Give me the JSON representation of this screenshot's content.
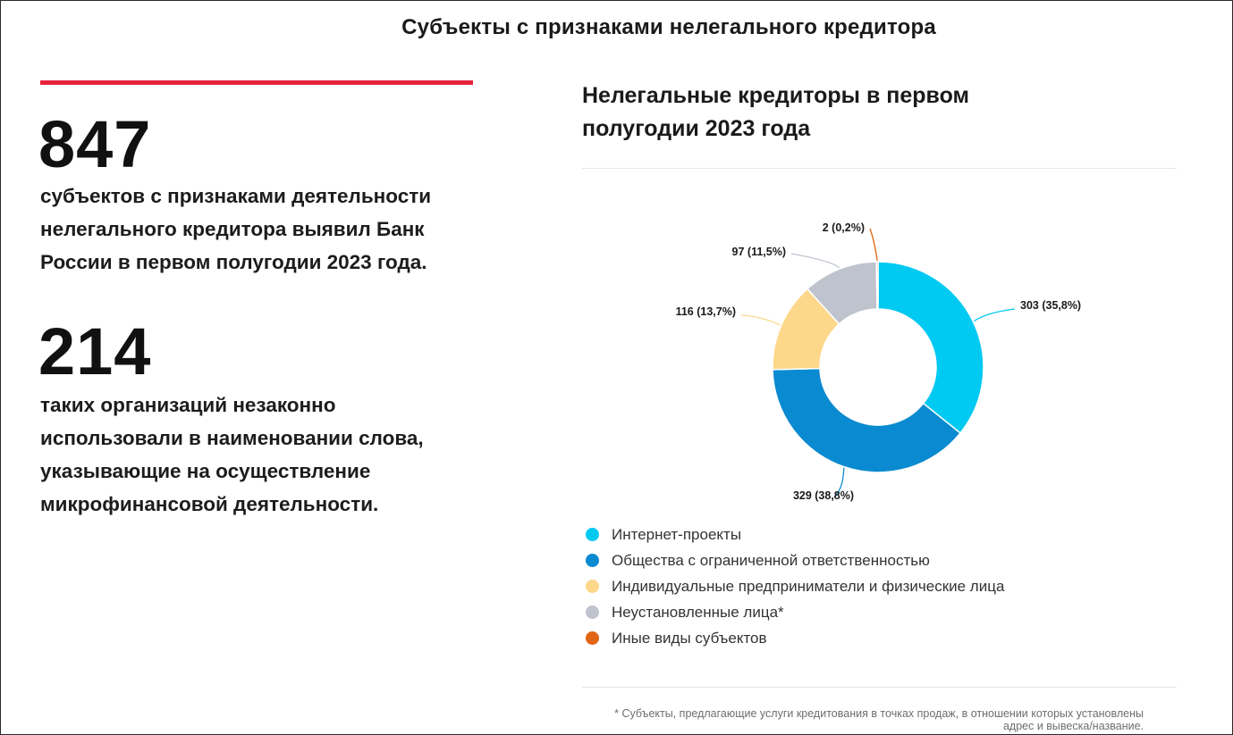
{
  "page": {
    "title": "Субъекты с признаками нелегального кредитора"
  },
  "stats": [
    {
      "number": "847",
      "text": [
        "субъектов с признаками деятельности",
        "нелегального кредитора выявил Банк",
        "России в первом полугодии 2023 года."
      ]
    },
    {
      "number": "214",
      "text": [
        "таких организаций незаконно",
        "использовали в наименовании слова,",
        "указывающие на осуществление",
        "микрофинансовой деятельности."
      ]
    }
  ],
  "chart_data": {
    "type": "pie",
    "variant": "donut",
    "title": [
      "Нелегальные кредиторы в первом",
      "полугодии 2023 года"
    ],
    "legend_position": "bottom-left",
    "slices": [
      {
        "label": "Интернет-проекты",
        "value": 303,
        "percent": 35.8,
        "data_label": "303 (35,8%)",
        "color": "#00c9f2"
      },
      {
        "label": "Общества с ограниченной ответственностью",
        "value": 329,
        "percent": 38.8,
        "data_label": "329 (38,8%)",
        "color": "#0a8ad0"
      },
      {
        "label": "Индивидуальные предприниматели и физические лица",
        "value": 116,
        "percent": 13.7,
        "data_label": "116 (13,7%)",
        "color": "#fdd88a"
      },
      {
        "label": "Неустановленные лица*",
        "value": 97,
        "percent": 11.5,
        "data_label": "97 (11,5%)",
        "color": "#bec3cd"
      },
      {
        "label": "Иные виды субъектов",
        "value": 2,
        "percent": 0.2,
        "data_label": "2 (0,2%)",
        "color": "#e06412"
      }
    ]
  },
  "footnote": "* Субъекты, предлагающие услуги кредитования в точках продаж, в отношении которых установлены адрес и вывеска/название."
}
